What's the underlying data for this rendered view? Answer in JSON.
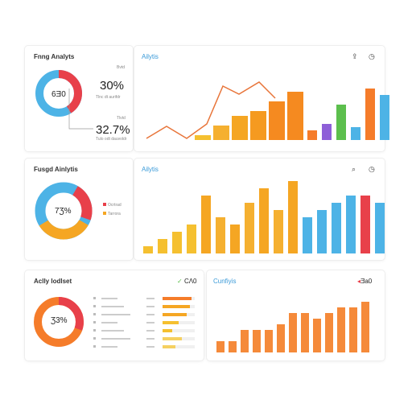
{
  "panel1": {
    "title": "Fnng Analyts",
    "donut_label": "6Ǝ0",
    "stat1_label": "Bvtd",
    "stat1_value": "30%",
    "stat1_caption": "Tlnc dt aurifdr",
    "stat2_label": "Tlvtd",
    "stat2_value": "32.7%",
    "stat2_caption": "Tulo odt dauvoldr",
    "chart_title": "Ailytis",
    "donut_colors": [
      "#4db3e6",
      "#e8404a"
    ]
  },
  "panel2": {
    "title": "Fusgd Ainlytis",
    "donut_label": "7Ʒ%",
    "legend": [
      "Ocrtrad",
      "Tarrora"
    ],
    "chart_title": "Ailytis",
    "donut_colors": [
      "#4db3e6",
      "#f5a623",
      "#e8404a"
    ]
  },
  "panel3": {
    "title": "Aclly lodlset",
    "badge": "CɅ0",
    "donut_label": "Ʒ3%",
    "chart_title": "Cunfiyis",
    "badge2": "Ǝa0",
    "donut_colors": [
      "#f57c2a",
      "#e8404a"
    ]
  },
  "chart_data": [
    {
      "type": "bar",
      "series": [
        {
          "values": [
            1,
            3,
            5,
            6,
            8,
            10
          ]
        },
        {
          "values": [
            3,
            4,
            6,
            5,
            9
          ]
        }
      ],
      "line": [
        2,
        4,
        3,
        6,
        5,
        9,
        10
      ],
      "colors": [
        "#f5c030",
        "#f5a623",
        "#f59a20",
        "#f58a20",
        "#f57c2a",
        "#4db3e6",
        "#8e5fd8",
        "#5cbf4d",
        "#f57c2a",
        "#4db3e6"
      ]
    },
    {
      "type": "bar",
      "values": [
        1,
        2,
        3,
        4,
        8,
        5,
        4,
        7,
        9,
        6,
        10,
        5,
        6,
        7,
        8,
        8,
        7
      ]
    },
    {
      "type": "bar",
      "values": [
        2,
        2,
        4,
        4,
        4,
        5,
        7,
        7,
        6,
        7,
        8,
        8,
        9
      ]
    }
  ]
}
